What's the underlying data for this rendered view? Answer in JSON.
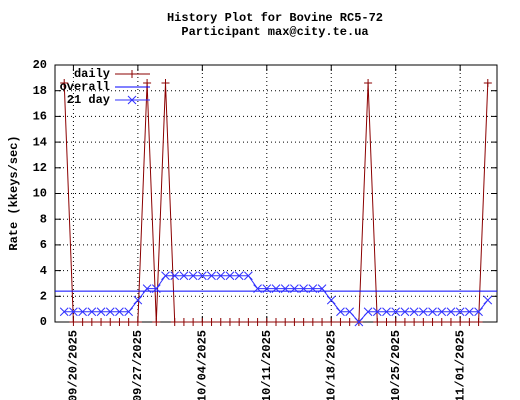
{
  "chart_data": {
    "type": "line",
    "title": "History Plot for Bovine RC5-72",
    "subtitle": "Participant max@city.te.ua",
    "y_label": "Rate (kkeys/sec)",
    "x": [
      "09/19/2025",
      "09/20/2025",
      "09/21/2025",
      "09/22/2025",
      "09/23/2025",
      "09/24/2025",
      "09/25/2025",
      "09/26/2025",
      "09/27/2025",
      "09/28/2025",
      "09/29/2025",
      "09/30/2025",
      "10/01/2025",
      "10/02/2025",
      "10/03/2025",
      "10/04/2025",
      "10/05/2025",
      "10/06/2025",
      "10/07/2025",
      "10/08/2025",
      "10/09/2025",
      "10/10/2025",
      "10/11/2025",
      "10/12/2025",
      "10/13/2025",
      "10/14/2025",
      "10/15/2025",
      "10/16/2025",
      "10/17/2025",
      "10/18/2025",
      "10/19/2025",
      "10/20/2025",
      "10/21/2025",
      "10/22/2025",
      "10/23/2025",
      "10/24/2025",
      "10/25/2025",
      "10/26/2025",
      "10/27/2025",
      "10/28/2025",
      "10/29/2025",
      "10/30/2025",
      "10/31/2025",
      "11/01/2025",
      "11/02/2025",
      "11/03/2025",
      "11/04/2025"
    ],
    "series": [
      {
        "name": "daily",
        "color": "#8b0000",
        "marker": "plus",
        "values": [
          18.6,
          0,
          0,
          0,
          0,
          0,
          0,
          0,
          0,
          18.6,
          0,
          18.6,
          0,
          0,
          0,
          0,
          0,
          0,
          0,
          0,
          0,
          0,
          0,
          0,
          0,
          0,
          0,
          0,
          0,
          0,
          0,
          0,
          0,
          18.6,
          0,
          0,
          0,
          0,
          0,
          0,
          0,
          0,
          0,
          0,
          0,
          0,
          18.6
        ]
      },
      {
        "name": "overall",
        "color": "#0000ff",
        "marker": "none",
        "x": [
          "09/18/2025",
          "11/05/2025"
        ],
        "values": [
          2.4,
          2.4
        ]
      },
      {
        "name": "21 day",
        "color": "#3030ff",
        "marker": "cross",
        "values": [
          0.8,
          0.8,
          0.8,
          0.8,
          0.8,
          0.8,
          0.8,
          0.8,
          1.7,
          2.6,
          2.6,
          3.6,
          3.6,
          3.6,
          3.6,
          3.6,
          3.6,
          3.6,
          3.6,
          3.6,
          3.6,
          2.6,
          2.6,
          2.6,
          2.6,
          2.6,
          2.6,
          2.6,
          2.6,
          1.7,
          0.8,
          0.8,
          0,
          0.8,
          0.8,
          0.8,
          0.8,
          0.8,
          0.8,
          0.8,
          0.8,
          0.8,
          0.8,
          0.8,
          0.8,
          0.8,
          1.7
        ]
      }
    ],
    "xlim": [
      "09/18/2025",
      "11/05/2025"
    ],
    "xticks": [
      "09/20/2025",
      "09/27/2025",
      "10/04/2025",
      "10/11/2025",
      "10/18/2025",
      "10/25/2025",
      "11/01/2025"
    ],
    "ylim": [
      0,
      20
    ],
    "yticks": [
      0,
      2,
      4,
      6,
      8,
      10,
      12,
      14,
      16,
      18,
      20
    ],
    "grid": true,
    "legend": "top-left"
  }
}
